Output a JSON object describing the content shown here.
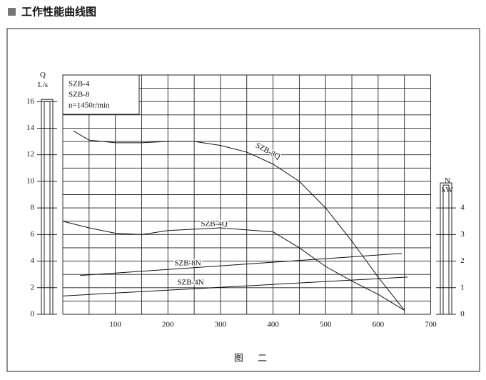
{
  "chart_data": {
    "type": "line",
    "title": "工作性能曲线图",
    "caption": "图 二",
    "y_label": "Q",
    "y_unit": "L/s",
    "y2_label": "N",
    "y2_unit": "kW",
    "legend_lines": [
      "SZB-4",
      "SZB-8",
      "n=1450r/min"
    ],
    "xlim": [
      0,
      700
    ],
    "xticks": [
      100,
      200,
      300,
      400,
      500,
      600,
      700
    ],
    "ylim": [
      0,
      18
    ],
    "yticks": [
      0,
      2,
      4,
      6,
      8,
      10,
      12,
      14,
      16
    ],
    "y2lim": [
      0,
      9
    ],
    "y2ticks": [
      0,
      1,
      2,
      3,
      4
    ],
    "grid": true,
    "color": "#111",
    "series": [
      {
        "name": "SZB-8Q",
        "color": "#111",
        "x": [
          20,
          50,
          100,
          150,
          200,
          250,
          300,
          350,
          400,
          450,
          500,
          550,
          600,
          650
        ],
        "values": [
          13.8,
          13.1,
          12.9,
          12.9,
          13.0,
          13.0,
          12.7,
          12.2,
          11.3,
          10.0,
          8.0,
          5.5,
          2.8,
          0.3
        ]
      },
      {
        "name": "SZB-4Q",
        "color": "#111",
        "x": [
          0,
          50,
          100,
          150,
          200,
          300,
          400,
          450,
          500,
          550,
          600,
          650
        ],
        "values": [
          7.0,
          6.5,
          6.1,
          6.0,
          6.3,
          6.5,
          6.2,
          5.0,
          3.6,
          2.5,
          1.5,
          0.3
        ]
      },
      {
        "name": "SZB-8N",
        "color": "#111",
        "axis": "y2",
        "x": [
          33,
          645
        ],
        "values": [
          1.46,
          2.29
        ]
      },
      {
        "name": "SZB-4N",
        "color": "#111",
        "axis": "y2",
        "x": [
          0,
          656
        ],
        "values": [
          0.69,
          1.4
        ]
      }
    ]
  }
}
